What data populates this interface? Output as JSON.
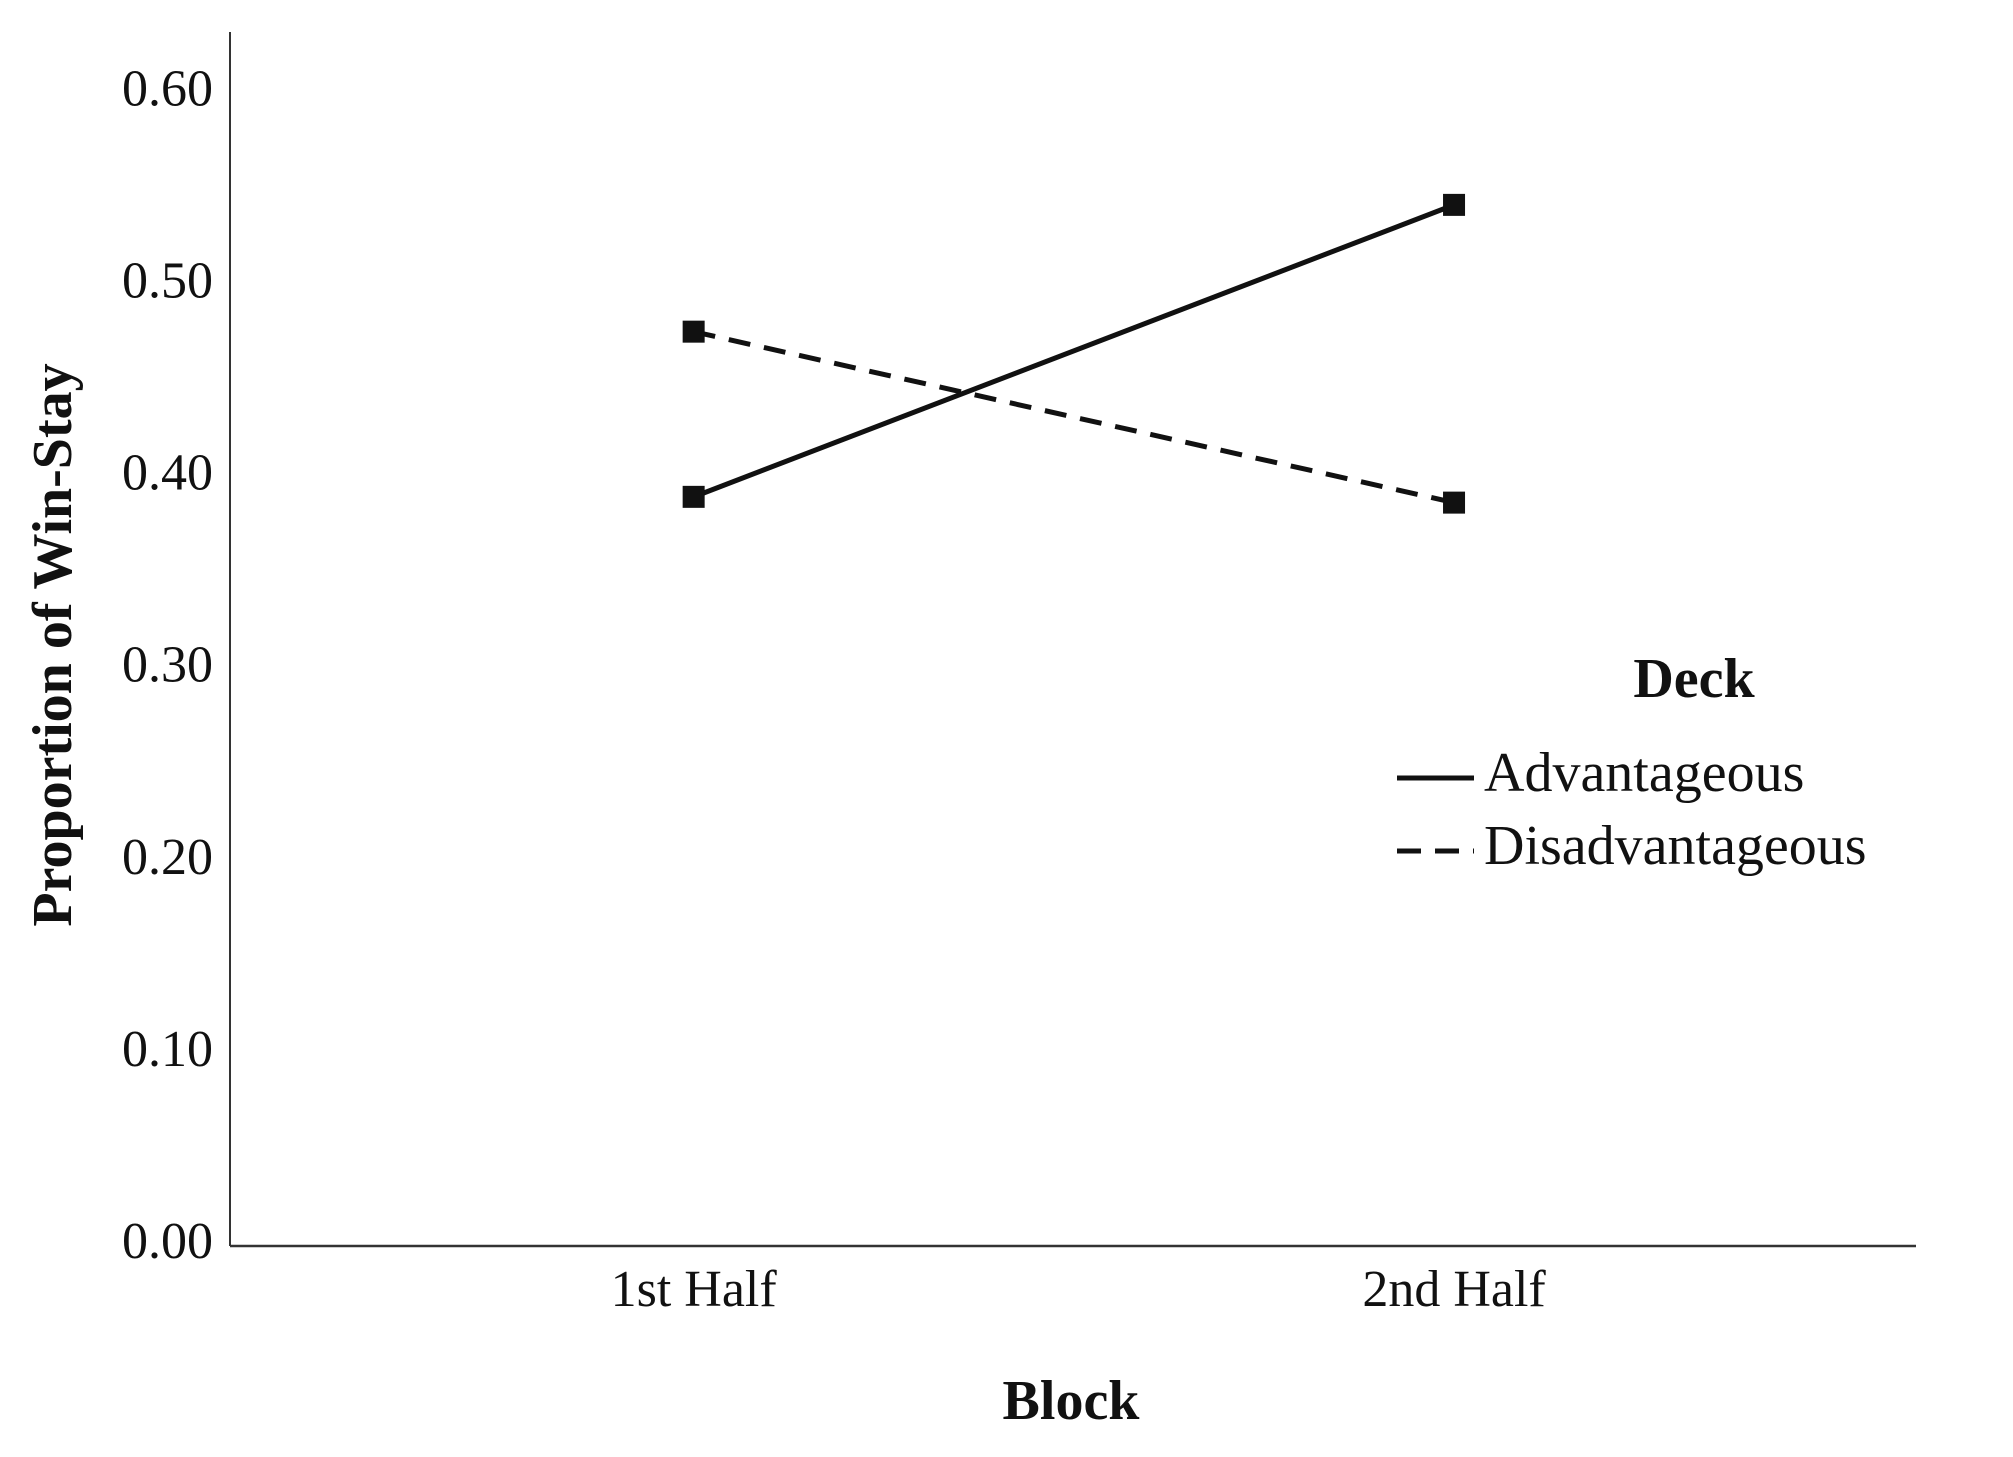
{
  "chart_data": {
    "type": "line",
    "x_label": "Block",
    "y_label": "Proportion of Win-Stay",
    "categories": [
      "1st Half",
      "2nd Half"
    ],
    "series": [
      {
        "name": "Advantageous",
        "color": "#111111",
        "dash": "solid",
        "values": [
          0.39,
          0.542
        ]
      },
      {
        "name": "Disadvantageous",
        "color": "#111111",
        "dash": "dashed",
        "values": [
          0.476,
          0.387
        ]
      }
    ],
    "legend_title": "Deck",
    "legend": "right",
    "grid": false,
    "ylim": [
      0,
      0.632
    ],
    "yticks": [
      {
        "value": 0,
        "label": "0.00"
      },
      {
        "value": 0.1,
        "label": "0.10"
      },
      {
        "value": 0.2,
        "label": "0.20"
      },
      {
        "value": 0.3,
        "label": "0.30"
      },
      {
        "value": 0.4,
        "label": "0.40"
      },
      {
        "value": 0.5,
        "label": "0.50"
      },
      {
        "value": 0.6,
        "label": "0.60"
      }
    ]
  }
}
